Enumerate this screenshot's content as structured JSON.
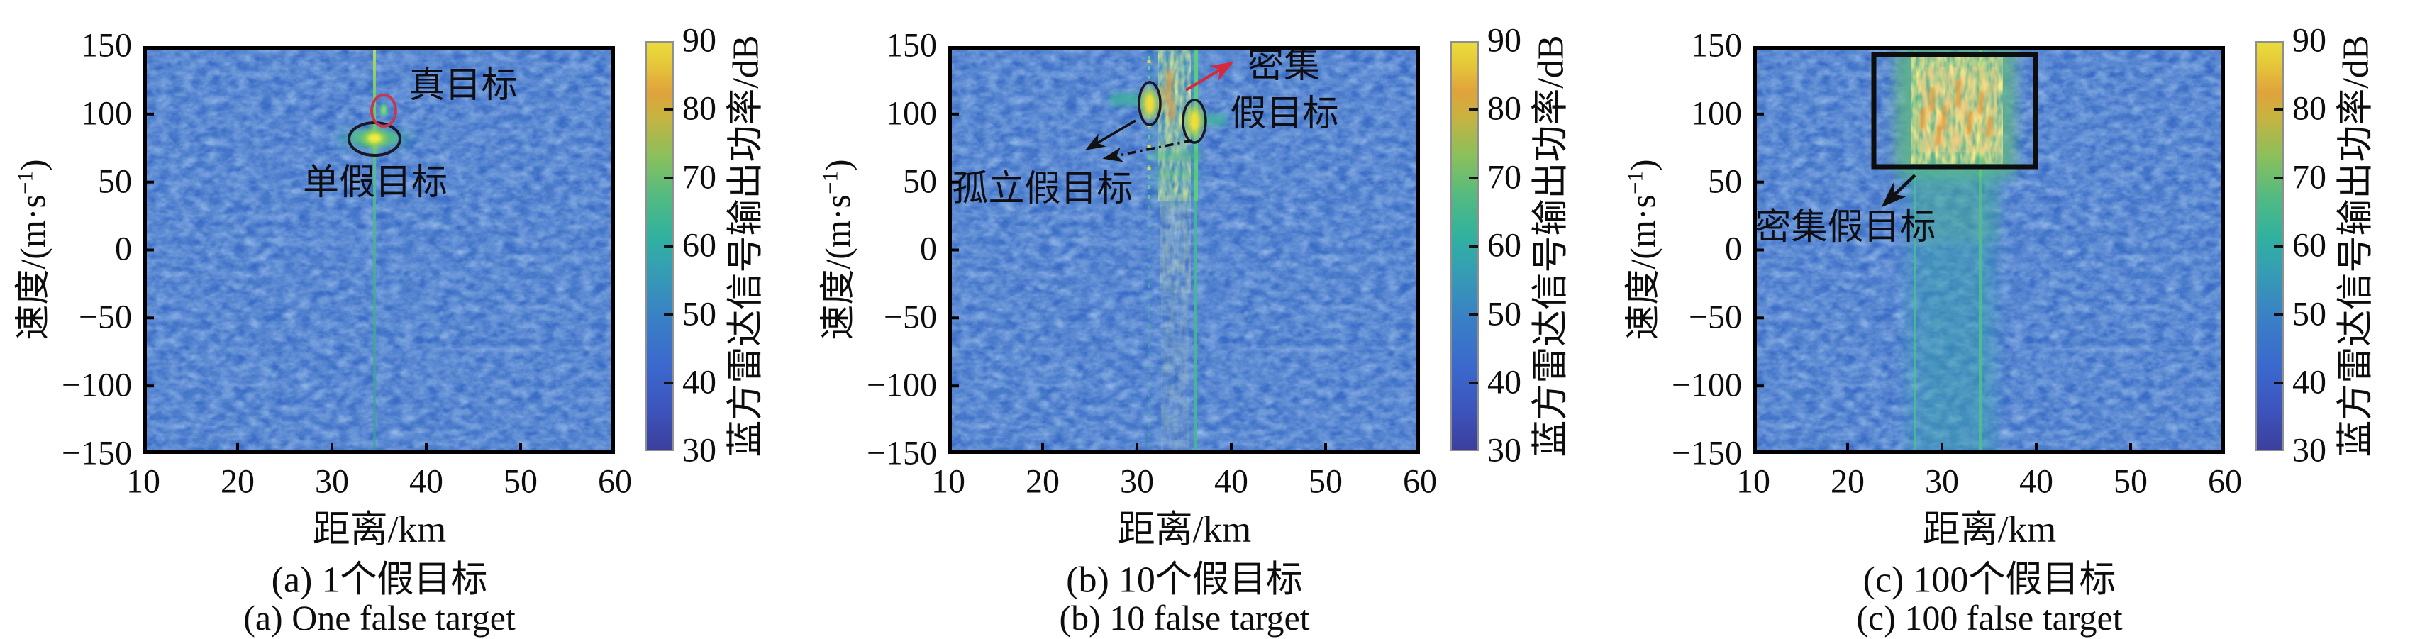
{
  "figure": {
    "axes": {
      "xlabel": "距离/km",
      "ylabel_prefix": "速度/(m·s",
      "ylabel_sup": "−1",
      "ylabel_suffix": ")",
      "xticks": [
        "10",
        "20",
        "30",
        "40",
        "50",
        "60"
      ],
      "yticks": [
        "150",
        "100",
        "50",
        "0",
        "−50",
        "−100",
        "−150"
      ]
    },
    "colorbar": {
      "label": "蓝方雷达信号输出功率/dB",
      "ticks": [
        "90",
        "80",
        "70",
        "60",
        "50",
        "40",
        "30"
      ]
    },
    "panels": [
      {
        "caption_zh": "(a) 1个假目标",
        "caption_en": "(a) One false target",
        "ann_true": "真目标",
        "ann_single": "单假目标"
      },
      {
        "caption_zh": "(b) 10个假目标",
        "caption_en": "(b) 10 false target",
        "ann_dense_1": "密集",
        "ann_dense_2": "假目标",
        "ann_isolated": "孤立假目标"
      },
      {
        "caption_zh": "(c) 100个假目标",
        "caption_en": "(c) 100 false target",
        "ann_dense": "密集假目标"
      }
    ]
  },
  "chart_data": [
    {
      "type": "heatmap",
      "title": "(a) 1个假目标 / One false target",
      "xlabel": "距离/km",
      "ylabel": "速度/(m·s−1)",
      "x_range_km": [
        10,
        60
      ],
      "y_range_mps": [
        -150,
        150
      ],
      "color_scale": {
        "label": "蓝方雷达信号输出功率/dB",
        "min": 30,
        "max": 90,
        "ticks": [
          90,
          80,
          70,
          60,
          50,
          40,
          30
        ],
        "colormap": "parula-like: dark blue → blue → teal → green → orange → yellow"
      },
      "background_noise_dB": "≈42–48 (blue speckle over whole map)",
      "features": [
        {
          "label": "jammer range line",
          "x_km": 34.5,
          "v_mps": "full span −150…150",
          "approx_dB": 55,
          "appearance": "thin teal-green vertical line"
        },
        {
          "label": "单假目标 (single false target)",
          "x_km": 34.5,
          "v_mps": 85,
          "approx_dB": 90,
          "appearance": "bright yellow blob with green/teal horizontal halo",
          "marker": "black ellipse outline"
        },
        {
          "label": "真目标 (true target)",
          "x_km": 35.5,
          "v_mps": 102,
          "approx_dB": 60,
          "appearance": "faint small green spot",
          "marker": "red ellipse outline"
        }
      ]
    },
    {
      "type": "heatmap",
      "title": "(b) 10个假目标 / 10 false target",
      "xlabel": "距离/km",
      "ylabel": "速度/(m·s−1)",
      "x_range_km": [
        10,
        60
      ],
      "y_range_mps": [
        -150,
        150
      ],
      "color_scale": {
        "label": "蓝方雷达信号输出功率/dB",
        "min": 30,
        "max": 90,
        "ticks": [
          90,
          80,
          70,
          60,
          50,
          40,
          30
        ],
        "colormap": "parula-like: dark blue → blue → teal → green → orange → yellow"
      },
      "background_noise_dB": "≈42–48",
      "features": [
        {
          "label": "孤立假目标 (isolated false targets)",
          "points": [
            {
              "x_km": 31.2,
              "v_mps": 108,
              "approx_dB": 88
            },
            {
              "x_km": 36.1,
              "v_mps": 95,
              "approx_dB": 88
            }
          ],
          "marker": "two black ellipse outlines pointed at by two black arrows"
        },
        {
          "label": "密集假目标 (dense false targets)",
          "x_km": "32–37",
          "v_mps": "40–150",
          "approx_dB": "70–90",
          "appearance": "cluster of yellow/green speckled vertical streaks with orange patches",
          "marker": "red arrow"
        },
        {
          "label": "jamming range lines",
          "x_km": [
            31.2,
            36.2
          ],
          "v_mps": "full span −150…150",
          "approx_dB": 55,
          "appearance": "dotted and solid teal vertical lines fading below v≈40"
        }
      ]
    },
    {
      "type": "heatmap",
      "title": "(c) 100个假目标 / 100 false target",
      "xlabel": "距离/km",
      "ylabel": "速度/(m·s−1)",
      "x_range_km": [
        10,
        60
      ],
      "y_range_mps": [
        -150,
        150
      ],
      "color_scale": {
        "label": "蓝方雷达信号输出功率/dB",
        "min": 30,
        "max": 90,
        "ticks": [
          90,
          80,
          70,
          60,
          50,
          40,
          30
        ],
        "colormap": "parula-like: dark blue → blue → teal → green → orange → yellow"
      },
      "background_noise_dB": "≈42–48",
      "features": [
        {
          "label": "密集假目标 (dense false targets)",
          "x_km": "23–40",
          "v_mps": "60–145",
          "approx_dB": "75–90",
          "appearance": "dense yellow/orange mottled patch of overlapping false targets",
          "marker": "black rectangle with black arrow pointing to label"
        },
        {
          "label": "jamming band",
          "x_km": "26–36",
          "v_mps": "full span −150…150",
          "approx_dB": "55–65",
          "appearance": "broad teal vertical band, brighter green lines near 27 km and 34 km"
        }
      ]
    }
  ]
}
